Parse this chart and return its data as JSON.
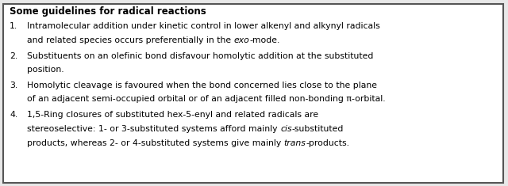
{
  "title": "Some guidelines for radical reactions",
  "background_color": "#e8e8e8",
  "box_color": "#ffffff",
  "text_color": "#000000",
  "border_color": "#555555",
  "figsize": [
    6.4,
    2.35
  ],
  "dpi": 100,
  "title_fontsize": 8.5,
  "body_fontsize": 7.8,
  "items": [
    {
      "num": "1.",
      "lines": [
        [
          {
            "text": "Intramolecular addition under kinetic control in lower alkenyl and alkynyl radicals",
            "italic": false,
            "bold": false
          }
        ],
        [
          {
            "text": "and related species occurs preferentially in the ",
            "italic": false,
            "bold": false
          },
          {
            "text": "exo",
            "italic": true,
            "bold": false
          },
          {
            "text": "-mode.",
            "italic": false,
            "bold": false
          }
        ]
      ]
    },
    {
      "num": "2.",
      "lines": [
        [
          {
            "text": "Substituents on an olefinic bond disfavour homolytic addition at the substituted",
            "italic": false,
            "bold": false
          }
        ],
        [
          {
            "text": "position.",
            "italic": false,
            "bold": false
          }
        ]
      ]
    },
    {
      "num": "3.",
      "lines": [
        [
          {
            "text": "Homolytic cleavage is favoured when the bond concerned lies close to the plane",
            "italic": false,
            "bold": false
          }
        ],
        [
          {
            "text": "of an adjacent semi-occupied orbital or of an adjacent filled non-bonding π-orbital.",
            "italic": false,
            "bold": false
          }
        ]
      ]
    },
    {
      "num": "4.",
      "lines": [
        [
          {
            "text": "1,5-Ring closures of substituted hex-5-enyl and related radicals are",
            "italic": false,
            "bold": false
          }
        ],
        [
          {
            "text": "stereoselective: 1- or 3-substituted systems afford mainly ",
            "italic": false,
            "bold": false
          },
          {
            "text": "cis",
            "italic": true,
            "bold": false
          },
          {
            "text": "-substituted",
            "italic": false,
            "bold": false
          }
        ],
        [
          {
            "text": "products, whereas 2- or 4-substituted systems give mainly ",
            "italic": false,
            "bold": false
          },
          {
            "text": "trans",
            "italic": true,
            "bold": false
          },
          {
            "text": "-products.",
            "italic": false,
            "bold": false
          }
        ]
      ]
    }
  ]
}
